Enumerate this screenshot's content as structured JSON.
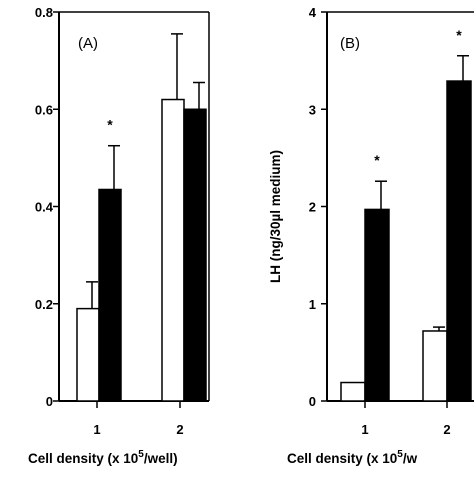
{
  "chart_data": [
    {
      "type": "bar",
      "panel_label": "(A)",
      "categories": [
        "1",
        "2"
      ],
      "series": [
        {
          "color": "#ffffff",
          "values": [
            0.19,
            0.62
          ],
          "errors": [
            0.055,
            0.135
          ]
        },
        {
          "color": "#000000",
          "values": [
            0.435,
            0.6
          ],
          "errors": [
            0.09,
            0.055
          ]
        }
      ],
      "significance": [
        "*",
        ""
      ],
      "xlabel": "Cell density (x 10",
      "xlabel_sup": "5",
      "xlabel_tail": "/well)",
      "ylabel": "",
      "ylim": [
        0,
        0.8
      ],
      "yticks": [
        "0",
        "0.2",
        "0.4",
        "0.6",
        "0.8"
      ],
      "grid": false
    },
    {
      "type": "bar",
      "panel_label": "(B)",
      "categories": [
        "1",
        "2"
      ],
      "series": [
        {
          "color": "#ffffff",
          "values": [
            0.19,
            0.72
          ],
          "errors": [
            0.0,
            0.04
          ]
        },
        {
          "color": "#000000",
          "values": [
            1.97,
            3.29
          ],
          "errors": [
            0.29,
            0.26
          ]
        }
      ],
      "significance": [
        "*",
        "*"
      ],
      "xlabel": "Cell density (x 10",
      "xlabel_sup": "5",
      "xlabel_tail": "/w",
      "ylabel": "LH (ng/30µl medium)",
      "ylim": [
        0,
        4
      ],
      "yticks": [
        "0",
        "1",
        "2",
        "3",
        "4"
      ],
      "grid": false
    }
  ]
}
